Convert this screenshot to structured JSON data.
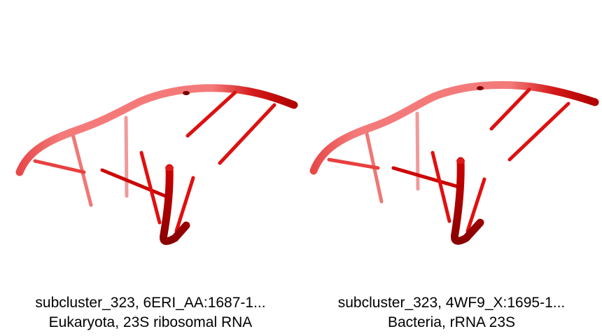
{
  "panels": [
    {
      "title": "subcluster_323, 6ERI_AA:1687-1...",
      "subtitle": "Eukaryota, 23S ribosomal RNA"
    },
    {
      "title": "subcluster_323, 4WF9_X:1695-1...",
      "subtitle": "Bacteria, rRNA 23S"
    }
  ],
  "colors": {
    "backbone_light": "#f06a6a",
    "backbone_dark": "#b30000",
    "base_red": "#e01010",
    "base_pink": "#ee7a7a"
  }
}
